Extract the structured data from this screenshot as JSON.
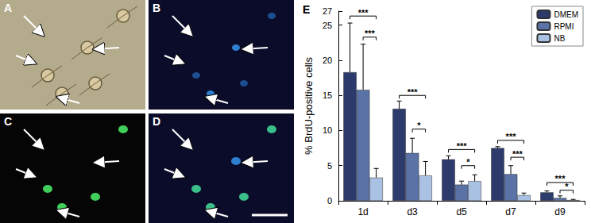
{
  "panels": [
    "A",
    "B",
    "C",
    "D"
  ],
  "chart_data": {
    "type": "bar",
    "title": "E",
    "y_label": "% BrdU-positive cells",
    "categories": [
      "1d",
      "d3",
      "d5",
      "d7",
      "d9"
    ],
    "series": [
      {
        "name": "DMEM",
        "color": "#2c3b6b",
        "values": [
          18.3,
          13.1,
          5.9,
          7.5,
          1.2
        ],
        "errors": [
          7.0,
          1.1,
          0.5,
          0.2,
          0.2
        ]
      },
      {
        "name": "RPMI",
        "color": "#5a72a6",
        "values": [
          15.8,
          6.8,
          2.3,
          3.8,
          0.4
        ],
        "errors": [
          6.5,
          2.1,
          0.5,
          1.2,
          0.3
        ]
      },
      {
        "name": "NB",
        "color": "#a9c2e4",
        "values": [
          3.3,
          3.6,
          2.8,
          0.8,
          0.1
        ],
        "errors": [
          1.3,
          2.0,
          0.9,
          0.3,
          0.1
        ]
      }
    ],
    "significance": [
      {
        "category": "1d",
        "from": "DMEM",
        "to": "NB",
        "label": "***",
        "y": 26.3
      },
      {
        "category": "1d",
        "from": "RPMI",
        "to": "NB",
        "label": "***",
        "y": 23.3
      },
      {
        "category": "d3",
        "from": "DMEM",
        "to": "NB",
        "label": "***",
        "y": 15.0
      },
      {
        "category": "d3",
        "from": "RPMI",
        "to": "NB",
        "label": "*",
        "y": 10.2
      },
      {
        "category": "d5",
        "from": "DMEM",
        "to": "NB",
        "label": "***",
        "y": 7.3
      },
      {
        "category": "d5",
        "from": "RPMI",
        "to": "NB",
        "label": "*",
        "y": 5.0
      },
      {
        "category": "d7",
        "from": "DMEM",
        "to": "NB",
        "label": "***",
        "y": 8.6
      },
      {
        "category": "d7",
        "from": "RPMI",
        "to": "NB",
        "label": "***",
        "y": 6.2
      },
      {
        "category": "d9",
        "from": "DMEM",
        "to": "NB",
        "label": "***",
        "y": 2.6
      },
      {
        "category": "d9",
        "from": "RPMI",
        "to": "NB",
        "label": "*",
        "y": 1.5
      }
    ],
    "ylim": [
      0,
      27
    ],
    "yticks": [
      0,
      5,
      10,
      15,
      20,
      25
    ],
    "legend": "upper right",
    "grid": false
  }
}
